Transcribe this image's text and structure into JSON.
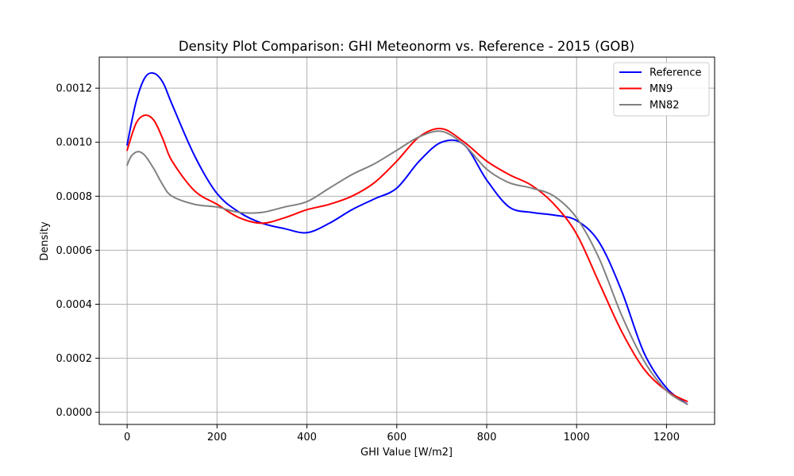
{
  "chart_data": {
    "type": "line",
    "title": "Density Plot Comparison: GHI Meteonorm vs. Reference - 2015 (GOB)",
    "xlabel": "GHI Value [W/m2]",
    "ylabel": "Density",
    "xlim": [
      -62,
      1307
    ],
    "ylim": [
      -4.5e-05,
      0.001315
    ],
    "xticks": [
      0,
      200,
      400,
      600,
      800,
      1000,
      1200
    ],
    "xtick_labels": [
      "0",
      "200",
      "400",
      "600",
      "800",
      "1000",
      "1200"
    ],
    "yticks": [
      0,
      0.0002,
      0.0004,
      0.0006,
      0.0008,
      0.001,
      0.0012
    ],
    "ytick_labels": [
      "0.0000",
      "0.0002",
      "0.0004",
      "0.0006",
      "0.0008",
      "0.0010",
      "0.0012"
    ],
    "grid": true,
    "legend_position": "top-right",
    "series": [
      {
        "name": "Reference",
        "color": "#0000ff",
        "x": [
          0,
          20,
          40,
          60,
          80,
          100,
          150,
          200,
          250,
          300,
          350,
          400,
          450,
          500,
          550,
          600,
          650,
          700,
          750,
          800,
          850,
          900,
          950,
          1000,
          1050,
          1100,
          1150,
          1200,
          1246
        ],
        "y": [
          0.00099,
          0.00115,
          0.00124,
          0.001255,
          0.00122,
          0.00114,
          0.00095,
          0.00081,
          0.00074,
          0.0007,
          0.00068,
          0.000665,
          0.0007,
          0.00075,
          0.00079,
          0.00083,
          0.00093,
          0.001,
          0.00099,
          0.00086,
          0.00076,
          0.00074,
          0.00073,
          0.00071,
          0.00063,
          0.00045,
          0.00022,
          9e-05,
          3e-05
        ]
      },
      {
        "name": "MN9",
        "color": "#ff0000",
        "x": [
          0,
          20,
          40,
          60,
          80,
          100,
          150,
          200,
          250,
          300,
          350,
          400,
          450,
          500,
          550,
          600,
          650,
          700,
          750,
          800,
          850,
          900,
          950,
          1000,
          1050,
          1100,
          1150,
          1200,
          1246
        ],
        "y": [
          0.00097,
          0.00107,
          0.0011,
          0.00108,
          0.00101,
          0.00093,
          0.00082,
          0.00077,
          0.00072,
          0.0007,
          0.00072,
          0.00075,
          0.00077,
          0.0008,
          0.00085,
          0.00093,
          0.00102,
          0.00105,
          0.001,
          0.00093,
          0.00088,
          0.00084,
          0.00077,
          0.00066,
          0.00048,
          0.0003,
          0.00016,
          8e-05,
          4e-05
        ]
      },
      {
        "name": "MN82",
        "color": "#808080",
        "x": [
          0,
          10,
          25,
          40,
          60,
          80,
          100,
          150,
          200,
          250,
          300,
          350,
          400,
          450,
          500,
          550,
          600,
          650,
          700,
          750,
          800,
          850,
          900,
          950,
          1000,
          1050,
          1100,
          1150,
          1200,
          1246
        ],
        "y": [
          0.000915,
          0.00095,
          0.000965,
          0.00095,
          0.0009,
          0.00084,
          0.0008,
          0.00077,
          0.00076,
          0.00074,
          0.00074,
          0.00076,
          0.00078,
          0.00083,
          0.00088,
          0.00092,
          0.00097,
          0.00102,
          0.00104,
          0.00099,
          0.0009,
          0.00085,
          0.00083,
          0.0008,
          0.00072,
          0.00057,
          0.00036,
          0.00019,
          8e-05,
          3e-05
        ]
      }
    ]
  }
}
